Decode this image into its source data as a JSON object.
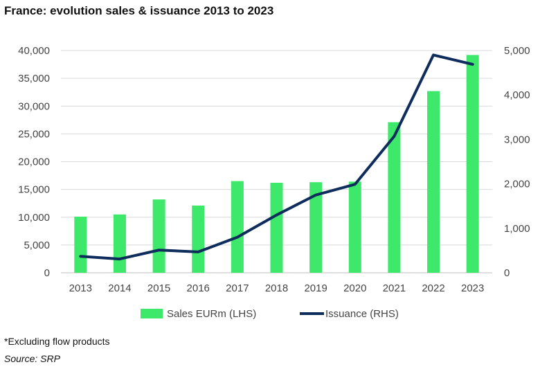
{
  "chart_data": {
    "type": "bar+line",
    "title": "France: evolution sales & issuance 2013 to 2023",
    "categories": [
      "2013",
      "2014",
      "2015",
      "2016",
      "2017",
      "2018",
      "2019",
      "2020",
      "2021",
      "2022",
      "2023"
    ],
    "series": [
      {
        "name": "Sales EURm (LHS)",
        "type": "bar",
        "axis": "left",
        "color": "#3de86a",
        "values": [
          10100,
          10500,
          13200,
          12100,
          16500,
          16200,
          16300,
          16400,
          27100,
          32700,
          39200
        ]
      },
      {
        "name": "Issuance (RHS)",
        "type": "line",
        "axis": "right",
        "color": "#0e2c5c",
        "values": [
          370,
          310,
          510,
          470,
          800,
          1300,
          1750,
          1990,
          3070,
          4900,
          4690
        ]
      }
    ],
    "y_left": {
      "min": 0,
      "max": 40000,
      "ticks": [
        "0",
        "5,000",
        "10,000",
        "15,000",
        "20,000",
        "25,000",
        "30,000",
        "35,000",
        "40,000"
      ]
    },
    "y_right": {
      "min": 0,
      "max": 5000,
      "ticks": [
        "0",
        "1,000",
        "2,000",
        "3,000",
        "4,000",
        "5,000"
      ]
    },
    "grid": "horizontal",
    "legend_position": "bottom"
  },
  "footnote": "*Excluding flow products",
  "source": "Source: SRP"
}
